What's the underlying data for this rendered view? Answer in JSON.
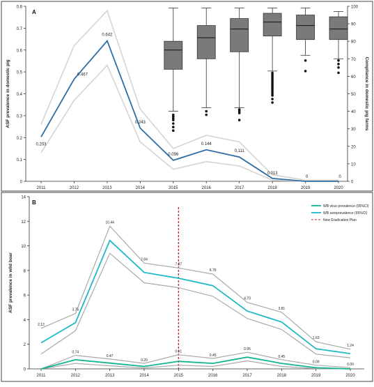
{
  "chart_data": [
    {
      "panel_label": "A",
      "type": "line",
      "ylabel": "ASF prevalence in domestic pig",
      "ylabel_right": "Compliance in domestic pig farms",
      "ylim": [
        0,
        0.8
      ],
      "ylim_right": [
        0,
        100
      ],
      "yticks": [
        "0",
        "0.1",
        "0.2",
        "0.3",
        "0.4",
        "0.5",
        "0.6",
        "0.7",
        "0.8"
      ],
      "yticks_right": [
        "0",
        "10",
        "20",
        "30",
        "40",
        "50",
        "60",
        "70",
        "80",
        "90",
        "100"
      ],
      "x": [
        "2011",
        "2012",
        "2013",
        "2014",
        "2015",
        "2016",
        "2017",
        "2018",
        "2019",
        "2020"
      ],
      "series": [
        {
          "values": [
            0.203,
            0.467,
            0.642,
            0.243,
            0.096,
            0.144,
            0.111,
            0.013,
            0,
            0
          ],
          "color": "#2e6da4"
        },
        {
          "values": [
            0.26,
            0.62,
            0.78,
            0.33,
            0.15,
            0.21,
            0.18,
            0.03,
            0.005,
            0.005
          ],
          "color": "#d4d4d4"
        },
        {
          "values": [
            0.13,
            0.37,
            0.53,
            0.18,
            0.055,
            0.09,
            0.07,
            0.005,
            0,
            0
          ],
          "color": "#d4d4d4"
        }
      ],
      "data_labels": [
        "0.203",
        "0.467",
        "0.642",
        "0.243",
        "0.096",
        "0.144",
        "0.111",
        "0.013",
        "0",
        "0"
      ],
      "boxplots": [
        {
          "x": "2015",
          "whisker_low": 40,
          "q1": 64,
          "median": 75,
          "q3": 80,
          "whisker_high": 99,
          "outliers": [
            29,
            31,
            33,
            35,
            36,
            37,
            38
          ]
        },
        {
          "x": "2016",
          "whisker_low": 42,
          "q1": 70,
          "median": 82,
          "q3": 89,
          "whisker_high": 99,
          "outliers": [
            38,
            40
          ]
        },
        {
          "x": "2017",
          "whisker_low": 42,
          "q1": 74,
          "median": 87,
          "q3": 93,
          "whisker_high": 99,
          "outliers": [
            35,
            39,
            40,
            41
          ]
        },
        {
          "x": "2018",
          "whisker_low": 63,
          "q1": 83,
          "median": 91,
          "q3": 96,
          "whisker_high": 99,
          "outliers": [
            45,
            47,
            49,
            50,
            51,
            52,
            53,
            54,
            55,
            56,
            57,
            58,
            59,
            60,
            61,
            62
          ]
        },
        {
          "x": "2019",
          "whisker_low": 72,
          "q1": 81,
          "median": 89,
          "q3": 95,
          "whisker_high": 99,
          "outliers": [
            63,
            69
          ]
        },
        {
          "x": "2020",
          "whisker_low": 70,
          "q1": 81,
          "median": 87,
          "q3": 94,
          "whisker_high": 97,
          "outliers": [
            62,
            65,
            67,
            69
          ]
        }
      ],
      "grid": false
    },
    {
      "panel_label": "B",
      "type": "line",
      "ylabel": "ASF prevalence in wild boar",
      "ylim": [
        0,
        14
      ],
      "yticks": [
        "0",
        "2",
        "4",
        "6",
        "8",
        "10",
        "12",
        "14"
      ],
      "x": [
        "2011",
        "2012",
        "2013",
        "2014",
        "2015",
        "2016",
        "2017",
        "2018",
        "2019",
        "2020"
      ],
      "series": [
        {
          "name": "WB virus prevalence (95%CI)",
          "values": [
            0,
            0.74,
            0.47,
            0.2,
            0.61,
            0.45,
            0.95,
            0.45,
            0.09,
            0
          ],
          "color": "#10b48f"
        },
        {
          "name": "WB seroprevalence (95%CI)",
          "values": [
            2.12,
            3.75,
            10.44,
            7.84,
            7.37,
            6.76,
            4.7,
            3.81,
            1.63,
            1.24
          ],
          "color": "#1fb8c8"
        },
        {
          "values": [
            3.3,
            4.5,
            11.6,
            8.6,
            8.2,
            7.7,
            5.4,
            4.6,
            2.2,
            1.6
          ],
          "color": "#a9a9a9"
        },
        {
          "values": [
            1.2,
            3.1,
            9.4,
            7.0,
            6.6,
            5.9,
            4.1,
            3.2,
            1.2,
            0.9
          ],
          "color": "#a9a9a9"
        },
        {
          "values": [
            0,
            1.1,
            0.8,
            0.45,
            1.15,
            0.85,
            1.35,
            0.75,
            0.3,
            0.1
          ],
          "color": "#a9a9a9"
        },
        {
          "values": [
            0,
            0.45,
            0.25,
            0.08,
            0.3,
            0.2,
            0.65,
            0.2,
            0.02,
            0
          ],
          "color": "#a9a9a9"
        }
      ],
      "data_labels_sero": [
        "2.12",
        "3.75",
        "10.44",
        "7.84",
        "7.37",
        "6.76",
        "4.70",
        "3.81",
        "1.63",
        "1.24"
      ],
      "data_labels_virus": [
        "0.74",
        "0.47",
        "0.20",
        "0.61",
        "0.45",
        "0.95",
        "0.45",
        "0.09",
        "0.00"
      ],
      "vline": {
        "x": "2015",
        "name": "New Eradication Plan",
        "color": "#cc2222"
      },
      "legend": "top-right",
      "grid": false
    }
  ]
}
